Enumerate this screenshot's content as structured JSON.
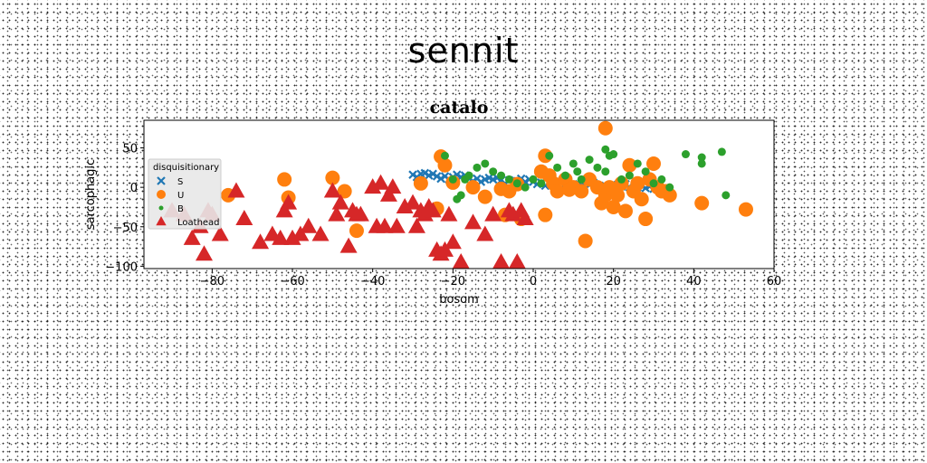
{
  "suptitle": "sennit",
  "chart_data": {
    "type": "scatter",
    "title": "catalo",
    "xlabel": "bosom",
    "ylabel": "sarcophagic",
    "xlim": [
      -97,
      60
    ],
    "ylim": [
      -103,
      85
    ],
    "xticks": [
      -80,
      -60,
      -40,
      -20,
      0,
      20,
      40,
      60
    ],
    "yticks": [
      -100,
      -50,
      0,
      50
    ],
    "xtick_labels": [
      "−80",
      "−60",
      "−40",
      "−20",
      "0",
      "20",
      "40",
      "60"
    ],
    "ytick_labels": [
      "−100",
      "−50",
      "0",
      "50"
    ],
    "grid": false,
    "legend": {
      "title": "disquisitionary",
      "placement": "center-left"
    },
    "series": [
      {
        "name": "S",
        "marker": "x",
        "color": "#1f77b4",
        "x": [
          -30,
          -28,
          -26,
          -24,
          -22,
          -20,
          -18,
          -16,
          -14,
          -12,
          -10,
          -8,
          -6,
          -4,
          -2,
          0,
          2,
          4,
          6,
          8,
          10,
          12,
          14,
          16,
          18,
          20,
          22,
          24,
          26,
          28,
          30,
          -29,
          -25,
          -21,
          -17,
          -13,
          -9,
          -5,
          -1,
          3,
          7,
          11,
          15,
          19,
          23,
          27,
          -27,
          -19,
          -11,
          -3,
          5,
          13,
          21,
          29,
          -23,
          -15,
          -7,
          1,
          9,
          17,
          25
        ],
        "y": [
          16,
          17,
          15,
          14,
          14,
          13,
          13,
          11,
          11,
          10,
          10,
          9,
          9,
          8,
          7,
          7,
          6,
          5,
          5,
          4,
          4,
          3,
          3,
          2,
          2,
          1,
          1,
          0,
          0,
          -1,
          -2,
          13,
          17,
          10,
          15,
          7,
          12,
          4,
          10,
          2,
          7,
          0,
          6,
          -2,
          4,
          2,
          18,
          16,
          12,
          11,
          8,
          5,
          3,
          1,
          11,
          8,
          5,
          4,
          2,
          0,
          -1
        ]
      },
      {
        "name": "U",
        "marker": "o",
        "color": "#ff7f0e",
        "x": [
          -76,
          -62,
          -61,
          -50,
          -47,
          -44,
          -28,
          -24,
          -23,
          -22,
          -20,
          -15,
          -12,
          -8,
          -7,
          -6,
          -4,
          -3,
          3,
          2,
          3,
          4,
          5,
          6,
          8,
          9,
          10,
          12,
          13,
          14,
          16,
          17,
          18,
          18,
          19,
          20,
          21,
          22,
          23,
          24,
          25,
          26,
          27,
          28,
          29,
          30,
          31,
          32,
          33,
          34,
          42,
          53
        ],
        "y": [
          -10,
          10,
          -13,
          12,
          -5,
          -55,
          5,
          -27,
          39,
          28,
          6,
          0,
          -12,
          -2,
          -35,
          -5,
          4,
          -40,
          40,
          20,
          -35,
          15,
          5,
          -5,
          10,
          -3,
          0,
          -5,
          -68,
          10,
          0,
          -20,
          75,
          -10,
          0,
          -25,
          -10,
          5,
          -30,
          28,
          -5,
          5,
          -15,
          -40,
          10,
          30,
          0,
          -5,
          -5,
          -10,
          -20,
          -28
        ]
      },
      {
        "name": "B",
        "marker": "o",
        "color": "#2ca02c",
        "x": [
          -22,
          -20,
          -19,
          -18,
          -17,
          -16,
          -14,
          -12,
          -10,
          -8,
          -6,
          -4,
          -2,
          0,
          2,
          4,
          6,
          8,
          10,
          11,
          12,
          14,
          16,
          18,
          18,
          19,
          20,
          22,
          24,
          26,
          28,
          30,
          32,
          34,
          38,
          42,
          42,
          47,
          48
        ],
        "y": [
          40,
          10,
          -15,
          -10,
          10,
          15,
          25,
          30,
          20,
          15,
          10,
          5,
          0,
          10,
          5,
          40,
          25,
          15,
          30,
          20,
          10,
          35,
          25,
          20,
          48,
          40,
          42,
          10,
          15,
          30,
          20,
          5,
          10,
          0,
          42,
          38,
          30,
          45,
          -10
        ]
      },
      {
        "name": "Loathead",
        "marker": "^",
        "color": "#d62728",
        "x": [
          -90,
          -87,
          -85,
          -83,
          -82,
          -81,
          -80,
          -78,
          -74,
          -72,
          -68,
          -65,
          -63,
          -62,
          -61,
          -60,
          -58,
          -56,
          -53,
          -50,
          -49,
          -48,
          -46,
          -45,
          -44,
          -43,
          -40,
          -39,
          -38,
          -37,
          -36,
          -35,
          -34,
          -32,
          -30,
          -29,
          -28,
          -27,
          -26,
          -25,
          -24,
          -23,
          -22,
          -21,
          -20,
          -18,
          -15,
          -12,
          -10,
          -8,
          -6,
          -5,
          -4,
          -3,
          -2
        ],
        "y": [
          -30,
          -35,
          -65,
          -50,
          -85,
          -30,
          -35,
          -60,
          -5,
          -40,
          -70,
          -60,
          -65,
          -30,
          -20,
          -65,
          -60,
          -50,
          -60,
          -5,
          -35,
          -20,
          -75,
          -30,
          -35,
          -35,
          0,
          -50,
          5,
          -50,
          -10,
          0,
          -50,
          -25,
          -20,
          -50,
          -30,
          -35,
          -25,
          -30,
          -80,
          -85,
          -80,
          -35,
          -70,
          -95,
          -45,
          -60,
          -35,
          -95,
          -30,
          -35,
          -95,
          -30,
          -40
        ]
      }
    ]
  }
}
